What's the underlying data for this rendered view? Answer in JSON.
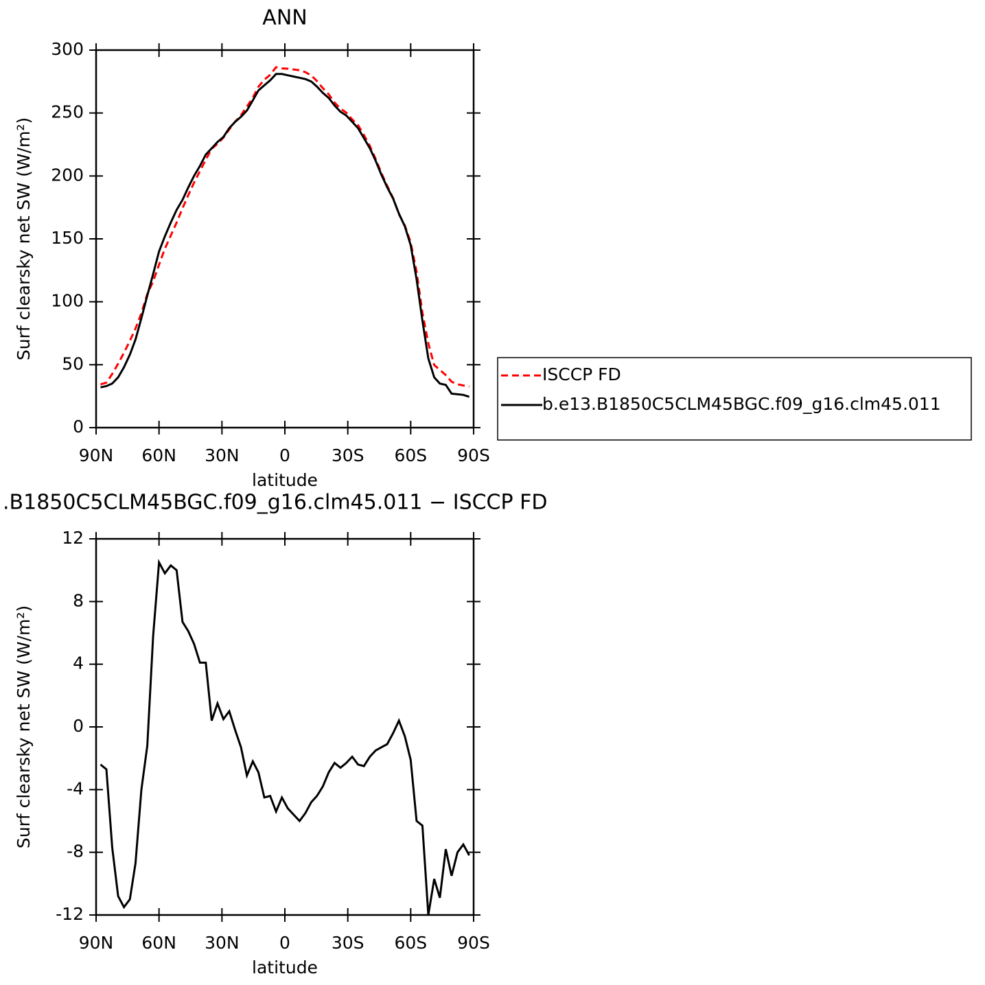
{
  "chart_data": [
    {
      "type": "line",
      "title": "ANN",
      "ylabel": "Surf clearsky net SW (W/m²)",
      "xlabel": "latitude",
      "x": [
        87.9,
        85.1,
        82.3,
        79.5,
        76.7,
        73.9,
        71.2,
        68.4,
        65.6,
        62.8,
        60.0,
        57.2,
        54.4,
        51.6,
        48.8,
        46.0,
        43.3,
        40.5,
        37.7,
        34.9,
        32.1,
        29.3,
        26.5,
        23.7,
        20.9,
        18.1,
        15.3,
        12.6,
        9.8,
        7.0,
        4.2,
        1.4,
        -1.4,
        -4.2,
        -7.0,
        -9.8,
        -12.6,
        -15.3,
        -18.1,
        -20.9,
        -23.7,
        -26.5,
        -29.3,
        -32.1,
        -34.9,
        -37.7,
        -40.5,
        -43.3,
        -46.0,
        -48.8,
        -51.6,
        -54.4,
        -57.2,
        -60.0,
        -62.8,
        -65.6,
        -68.4,
        -71.2,
        -73.9,
        -76.7,
        -79.5,
        -82.3,
        -85.1,
        -87.9
      ],
      "series": [
        {
          "name": "ISCCP FD",
          "color": "#ff0000",
          "style": "dashed",
          "values": [
            34.4,
            35.7,
            42.7,
            50.8,
            59.5,
            69,
            78.7,
            91,
            106.2,
            116.2,
            129.5,
            142.2,
            152.7,
            163,
            174.3,
            184.9,
            194.7,
            203.9,
            212.9,
            221.6,
            225.5,
            230.5,
            237,
            243.2,
            248.3,
            255.1,
            262.2,
            270.9,
            276.5,
            280.4,
            286.4,
            285.5,
            285.2,
            284.6,
            284,
            282.5,
            279.8,
            275.4,
            269.8,
            264.9,
            258.3,
            253.6,
            250.3,
            244.9,
            240.4,
            232.5,
            223.9,
            213.5,
            202.3,
            192.1,
            182.4,
            169.6,
            160.6,
            147.1,
            124,
            91.3,
            67,
            49.7,
            45.9,
            41.8,
            36.5,
            34.5,
            33.5,
            32.7
          ]
        },
        {
          "name": "b.e13.B1850C5CLM45BGC.f09_g16.clm45.011",
          "color": "#000000",
          "style": "solid",
          "values": [
            32,
            33,
            35,
            40,
            48,
            58,
            70,
            87,
            105,
            122,
            140,
            152,
            163,
            173,
            181,
            191,
            200,
            208,
            217,
            222,
            227,
            231,
            238,
            243,
            247,
            252,
            260,
            268,
            272,
            276,
            281,
            281,
            280,
            279,
            278,
            277,
            275,
            271,
            266,
            262,
            256,
            251,
            248,
            243,
            238,
            230,
            222,
            212,
            201,
            191,
            182,
            170,
            160,
            145,
            118,
            85,
            55,
            40,
            35,
            34,
            27,
            26.5,
            26,
            24.5
          ]
        }
      ],
      "xlim": [
        90,
        -90
      ],
      "xticks": [
        {
          "value": 90,
          "label": "90N"
        },
        {
          "value": 60,
          "label": "60N"
        },
        {
          "value": 30,
          "label": "30N"
        },
        0,
        {
          "value": -30,
          "label": "30S"
        },
        {
          "value": -60,
          "label": "60S"
        },
        {
          "value": -90,
          "label": "90S"
        }
      ],
      "ylim": [
        0,
        300
      ],
      "yticks": [
        0,
        50,
        100,
        150,
        200,
        250,
        300
      ],
      "legend": "right"
    },
    {
      "type": "line",
      "title": ".B1850C5CLM45BGC.f09_g16.clm45.011 − ISCCP FD",
      "ylabel": "Surf clearsky net SW (W/m²)",
      "xlabel": "latitude",
      "x": [
        87.9,
        85.1,
        82.3,
        79.5,
        76.7,
        73.9,
        71.2,
        68.4,
        65.6,
        62.8,
        60.0,
        57.2,
        54.4,
        51.6,
        48.8,
        46.0,
        43.3,
        40.5,
        37.7,
        34.9,
        32.1,
        29.3,
        26.5,
        23.7,
        20.9,
        18.1,
        15.3,
        12.6,
        9.8,
        7.0,
        4.2,
        1.4,
        -1.4,
        -4.2,
        -7.0,
        -9.8,
        -12.6,
        -15.3,
        -18.1,
        -20.9,
        -23.7,
        -26.5,
        -29.3,
        -32.1,
        -34.9,
        -37.7,
        -40.5,
        -43.3,
        -46.0,
        -48.8,
        -51.6,
        -54.4,
        -57.2,
        -60.0,
        -62.8,
        -65.6,
        -68.4,
        -71.2,
        -73.9,
        -76.7,
        -79.5,
        -82.3,
        -85.1,
        -87.9
      ],
      "series": [
        {
          "color": "#000000",
          "style": "solid",
          "values": [
            -2.4,
            -2.7,
            -7.7,
            -10.8,
            -11.5,
            -11.0,
            -8.7,
            -4.0,
            -1.2,
            5.8,
            10.5,
            9.8,
            10.3,
            10.0,
            6.7,
            6.1,
            5.3,
            4.1,
            4.1,
            0.4,
            1.5,
            0.5,
            1.0,
            -0.2,
            -1.3,
            -3.1,
            -2.2,
            -2.9,
            -4.5,
            -4.4,
            -5.4,
            -4.5,
            -5.2,
            -5.6,
            -6.0,
            -5.5,
            -4.8,
            -4.4,
            -3.8,
            -2.9,
            -2.3,
            -2.6,
            -2.3,
            -1.9,
            -2.4,
            -2.5,
            -1.9,
            -1.5,
            -1.3,
            -1.1,
            -0.4,
            0.4,
            -0.6,
            -2.1,
            -6.0,
            -6.3,
            -12.0,
            -9.7,
            -10.9,
            -7.8,
            -9.5,
            -8.0,
            -7.5,
            -8.2
          ]
        }
      ],
      "xlim": [
        90,
        -90
      ],
      "xticks": [
        {
          "value": 90,
          "label": "90N"
        },
        {
          "value": 60,
          "label": "60N"
        },
        {
          "value": 30,
          "label": "30N"
        },
        0,
        {
          "value": -30,
          "label": "30S"
        },
        {
          "value": -60,
          "label": "60S"
        },
        {
          "value": -90,
          "label": "90S"
        }
      ],
      "ylim": [
        -12,
        12
      ],
      "yticks": [
        -12,
        -8,
        -4,
        0,
        4,
        8,
        12
      ]
    }
  ]
}
